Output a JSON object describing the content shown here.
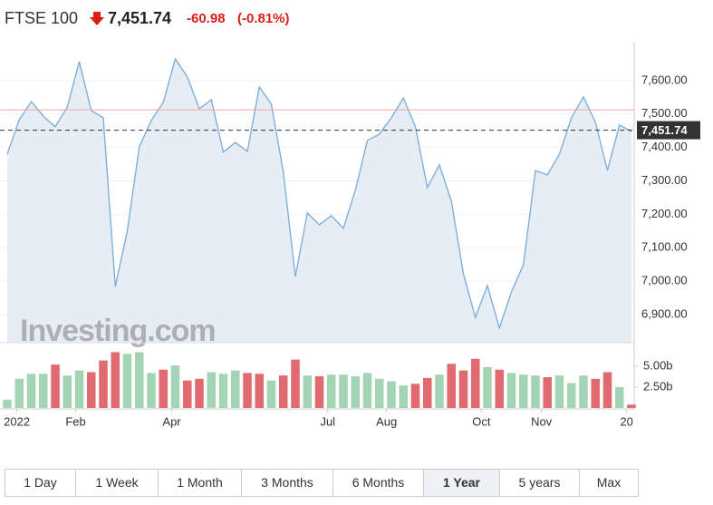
{
  "header": {
    "name": "FTSE 100",
    "price": "7,451.74",
    "change": "-60.98",
    "change_pct": "(-0.81%)"
  },
  "chart_data": {
    "type": "line",
    "watermark": "Investing.com",
    "x": [
      0,
      1,
      2,
      3,
      4,
      5,
      6,
      7,
      8,
      9,
      10,
      11,
      12,
      13,
      14,
      15,
      16,
      17,
      18,
      19,
      20,
      21,
      22,
      23,
      24,
      25,
      26,
      27,
      28,
      29,
      30,
      31,
      32,
      33,
      34,
      35,
      36,
      37,
      38,
      39,
      40,
      41,
      42,
      43,
      44,
      45,
      46,
      47,
      48,
      49,
      50,
      51,
      52
    ],
    "xlim": [
      0,
      52
    ],
    "xticks": [
      {
        "value": 0.8,
        "label": "2022"
      },
      {
        "value": 5.7,
        "label": "Feb"
      },
      {
        "value": 13.7,
        "label": "Apr"
      },
      {
        "value": 26.7,
        "label": "Jul"
      },
      {
        "value": 31.6,
        "label": "Aug"
      },
      {
        "value": 39.5,
        "label": "Oct"
      },
      {
        "value": 44.5,
        "label": "Nov"
      },
      {
        "value": 51.6,
        "label": "20"
      }
    ],
    "series": [
      {
        "name": "FTSE 100",
        "color": "#7fb0d9",
        "fill": "#e6edf5",
        "values": [
          7380,
          7483,
          7537,
          7494,
          7462,
          7521,
          7657,
          7510,
          7489,
          6984,
          7150,
          7402,
          7481,
          7535,
          7665,
          7611,
          7516,
          7543,
          7386,
          7415,
          7388,
          7581,
          7530,
          7326,
          7014,
          7204,
          7169,
          7196,
          7158,
          7272,
          7421,
          7440,
          7489,
          7548,
          7462,
          7280,
          7348,
          7239,
          7022,
          6892,
          6987,
          6860,
          6968,
          7049,
          7331,
          7318,
          7380,
          7489,
          7551,
          7475,
          7331,
          7467,
          7448
        ]
      }
    ],
    "ylim": [
      6816,
      7692
    ],
    "yticks": [
      {
        "value": 6900,
        "label": "6,900.00"
      },
      {
        "value": 7000,
        "label": "7,000.00"
      },
      {
        "value": 7100,
        "label": "7,100.00"
      },
      {
        "value": 7200,
        "label": "7,200.00"
      },
      {
        "value": 7300,
        "label": "7,300.00"
      },
      {
        "value": 7400,
        "label": "7,400.00"
      },
      {
        "value": 7500,
        "label": "7,500.00"
      },
      {
        "value": 7600,
        "label": "7,600.00"
      }
    ],
    "current": {
      "value": 7451.74,
      "label": "7,451.74"
    },
    "previous_close": 7512.72,
    "volume": {
      "values": [
        1.0,
        3.5,
        4.1,
        4.1,
        5.2,
        3.9,
        4.5,
        4.3,
        5.7,
        6.7,
        6.5,
        6.7,
        4.2,
        4.6,
        5.1,
        3.3,
        3.5,
        4.3,
        4.1,
        4.5,
        4.2,
        4.1,
        3.3,
        3.9,
        5.8,
        3.9,
        3.8,
        4.0,
        4.0,
        3.8,
        4.2,
        3.5,
        3.2,
        2.7,
        2.9,
        3.6,
        4.0,
        5.3,
        4.5,
        5.9,
        4.9,
        4.6,
        4.2,
        4.0,
        3.9,
        3.7,
        3.9,
        3.0,
        3.9,
        3.5,
        4.3,
        2.5,
        0.4
      ],
      "directions": [
        "up",
        "up",
        "up",
        "up",
        "down",
        "up",
        "up",
        "down",
        "down",
        "down",
        "up",
        "up",
        "up",
        "down",
        "up",
        "down",
        "down",
        "up",
        "up",
        "up",
        "down",
        "down",
        "up",
        "down",
        "down",
        "up",
        "down",
        "up",
        "up",
        "up",
        "up",
        "up",
        "up",
        "up",
        "down",
        "down",
        "up",
        "down",
        "down",
        "down",
        "up",
        "down",
        "up",
        "up",
        "up",
        "down",
        "up",
        "up",
        "up",
        "down",
        "down",
        "up",
        "down"
      ],
      "up_color": "#a3d5b4",
      "down_color": "#e06a6f",
      "ylim": [
        0,
        7.07
      ],
      "yticks": [
        {
          "value": 2.5,
          "label": "2.50b"
        },
        {
          "value": 5,
          "label": "5.00b"
        }
      ]
    },
    "grid": true
  },
  "ranges": {
    "items": [
      "1 Day",
      "1 Week",
      "1 Month",
      "3 Months",
      "6 Months",
      "1 Year",
      "5 years",
      "Max"
    ],
    "active": 5
  }
}
